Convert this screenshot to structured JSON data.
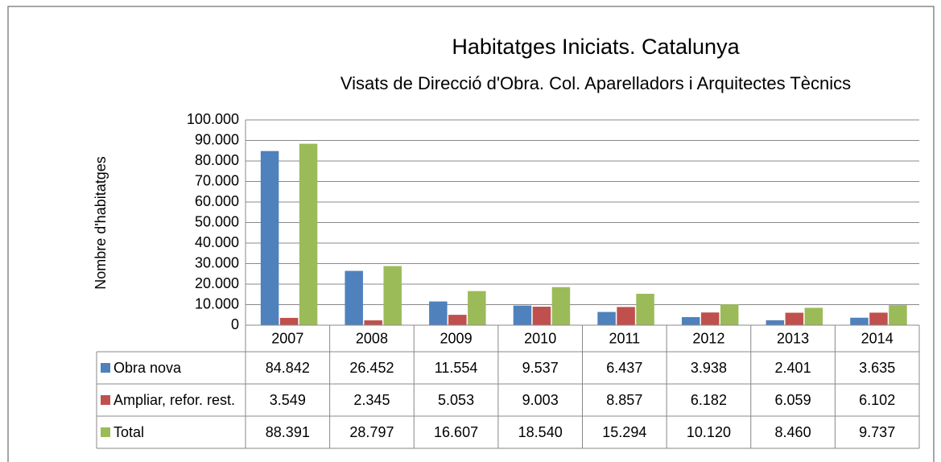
{
  "chart_data": {
    "type": "bar",
    "title": "Habitatges Iniciats. Catalunya",
    "subtitle": "Visats de Direcció d'Obra. Col. Aparelladors i Arquitectes Tècnics",
    "y_label": "Nombre d'habitatges",
    "categories": [
      "2007",
      "2008",
      "2009",
      "2010",
      "2011",
      "2012",
      "2013",
      "2014"
    ],
    "series": [
      {
        "name": "Obra nova",
        "color": "#4f81bd",
        "values": [
          84842,
          26452,
          11554,
          9537,
          6437,
          3938,
          2401,
          3635
        ],
        "value_labels": [
          "84.842",
          "26.452",
          "11.554",
          "9.537",
          "6.437",
          "3.938",
          "2.401",
          "3.635"
        ]
      },
      {
        "name": "Ampliar, refor. rest.",
        "color": "#c0504d",
        "values": [
          3549,
          2345,
          5053,
          9003,
          8857,
          6182,
          6059,
          6102
        ],
        "value_labels": [
          "3.549",
          "2.345",
          "5.053",
          "9.003",
          "8.857",
          "6.182",
          "6.059",
          "6.102"
        ]
      },
      {
        "name": "Total",
        "color": "#9bbb59",
        "values": [
          88391,
          28797,
          16607,
          18540,
          15294,
          10120,
          8460,
          9737
        ],
        "value_labels": [
          "88.391",
          "28.797",
          "16.607",
          "18.540",
          "15.294",
          "10.120",
          "8.460",
          "9.737"
        ]
      }
    ],
    "ylim": [
      0,
      100000
    ],
    "yticks": [
      0,
      {
        "value": 10000,
        "label": "10.000"
      },
      {
        "value": 20000,
        "label": "20.000"
      },
      {
        "value": 30000,
        "label": "30.000"
      },
      {
        "value": 40000,
        "label": "40.000"
      },
      {
        "value": 50000,
        "label": "50.000"
      },
      {
        "value": 60000,
        "label": "60.000"
      },
      {
        "value": 70000,
        "label": "70.000"
      },
      {
        "value": 80000,
        "label": "80.000"
      },
      {
        "value": 90000,
        "label": "90.000"
      },
      {
        "value": 100000,
        "label": "100.000"
      }
    ],
    "grid": true
  }
}
